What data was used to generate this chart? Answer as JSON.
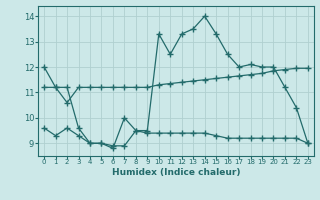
{
  "x": [
    0,
    1,
    2,
    3,
    4,
    5,
    6,
    7,
    8,
    9,
    10,
    11,
    12,
    13,
    14,
    15,
    16,
    17,
    18,
    19,
    20,
    21,
    22,
    23
  ],
  "line1": [
    12.0,
    11.2,
    11.2,
    9.6,
    9.0,
    9.0,
    8.8,
    10.0,
    9.5,
    9.5,
    13.3,
    12.5,
    13.3,
    13.5,
    14.0,
    13.3,
    12.5,
    12.0,
    12.1,
    12.0,
    12.0,
    11.2,
    10.4,
    9.0
  ],
  "line2": [
    11.2,
    11.2,
    10.6,
    11.2,
    11.2,
    11.2,
    11.2,
    11.2,
    11.2,
    11.2,
    11.3,
    11.35,
    11.4,
    11.45,
    11.5,
    11.55,
    11.6,
    11.65,
    11.7,
    11.75,
    11.85,
    11.9,
    11.95,
    11.95
  ],
  "line3": [
    9.6,
    9.3,
    9.6,
    9.3,
    9.0,
    9.0,
    8.9,
    8.9,
    9.5,
    9.4,
    9.4,
    9.4,
    9.4,
    9.4,
    9.4,
    9.3,
    9.2,
    9.2,
    9.2,
    9.2,
    9.2,
    9.2,
    9.2,
    9.0
  ],
  "color": "#236b6b",
  "bg_color": "#cce8e8",
  "grid_color": "#b0d0d0",
  "xlabel": "Humidex (Indice chaleur)",
  "ylim": [
    8.5,
    14.4
  ],
  "xlim": [
    -0.5,
    23.5
  ],
  "yticks": [
    9,
    10,
    11,
    12,
    13,
    14
  ],
  "xtick_labels": [
    "0",
    "1",
    "2",
    "3",
    "4",
    "5",
    "6",
    "7",
    "8",
    "9",
    "10",
    "11",
    "12",
    "13",
    "14",
    "15",
    "16",
    "17",
    "18",
    "19",
    "20",
    "21",
    "22",
    "23"
  ],
  "marker": "+",
  "markersize": 4,
  "linewidth": 0.9
}
